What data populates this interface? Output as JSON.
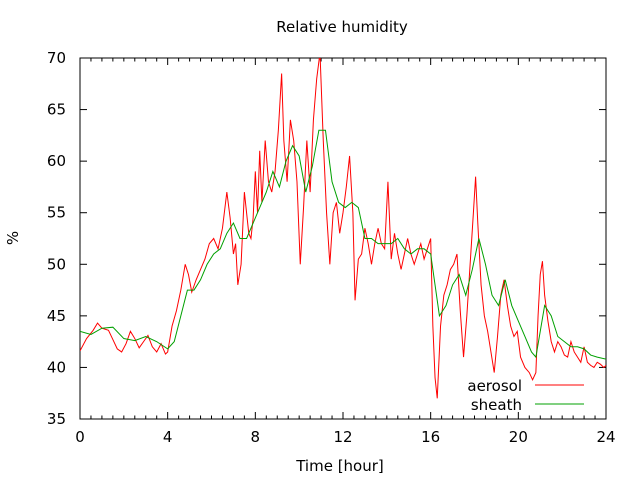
{
  "chart_data": {
    "type": "line",
    "title": "Relative humidity",
    "xlabel": "Time [hour]",
    "ylabel": "%",
    "xlim": [
      0,
      24
    ],
    "ylim": [
      35,
      70
    ],
    "x_ticks": [
      0,
      4,
      8,
      12,
      16,
      20,
      24
    ],
    "y_ticks": [
      35,
      40,
      45,
      50,
      55,
      60,
      65,
      70
    ],
    "grid": false,
    "legend_position": "bottom-right",
    "series": [
      {
        "name": "aerosol",
        "color": "#ff0000",
        "points": [
          [
            0.0,
            41.6
          ],
          [
            0.3,
            42.8
          ],
          [
            0.6,
            43.6
          ],
          [
            0.8,
            44.3
          ],
          [
            1.0,
            43.8
          ],
          [
            1.3,
            43.6
          ],
          [
            1.5,
            42.7
          ],
          [
            1.7,
            41.8
          ],
          [
            1.9,
            41.5
          ],
          [
            2.1,
            42.3
          ],
          [
            2.3,
            43.5
          ],
          [
            2.5,
            42.8
          ],
          [
            2.7,
            41.9
          ],
          [
            2.9,
            42.5
          ],
          [
            3.1,
            43.1
          ],
          [
            3.3,
            42.0
          ],
          [
            3.5,
            41.5
          ],
          [
            3.7,
            42.3
          ],
          [
            3.9,
            41.3
          ],
          [
            4.0,
            41.5
          ],
          [
            4.2,
            44.0
          ],
          [
            4.4,
            45.5
          ],
          [
            4.6,
            47.5
          ],
          [
            4.8,
            50.0
          ],
          [
            4.95,
            49.0
          ],
          [
            5.1,
            47.3
          ],
          [
            5.3,
            48.5
          ],
          [
            5.5,
            49.5
          ],
          [
            5.7,
            50.5
          ],
          [
            5.9,
            52.0
          ],
          [
            6.1,
            52.5
          ],
          [
            6.3,
            51.5
          ],
          [
            6.5,
            53.5
          ],
          [
            6.7,
            57.0
          ],
          [
            6.85,
            54.5
          ],
          [
            7.0,
            51.0
          ],
          [
            7.1,
            52.0
          ],
          [
            7.2,
            48.0
          ],
          [
            7.35,
            50.0
          ],
          [
            7.5,
            57.0
          ],
          [
            7.6,
            55.0
          ],
          [
            7.7,
            53.0
          ],
          [
            7.8,
            52.5
          ],
          [
            7.9,
            54.5
          ],
          [
            8.0,
            59.0
          ],
          [
            8.1,
            55.0
          ],
          [
            8.2,
            61.0
          ],
          [
            8.3,
            56.0
          ],
          [
            8.45,
            62.0
          ],
          [
            8.6,
            58.0
          ],
          [
            8.75,
            57.0
          ],
          [
            8.9,
            59.0
          ],
          [
            9.05,
            63.0
          ],
          [
            9.2,
            68.5
          ],
          [
            9.3,
            62.0
          ],
          [
            9.45,
            58.0
          ],
          [
            9.6,
            64.0
          ],
          [
            9.75,
            62.0
          ],
          [
            9.9,
            58.0
          ],
          [
            10.05,
            50.0
          ],
          [
            10.2,
            55.5
          ],
          [
            10.35,
            62.0
          ],
          [
            10.5,
            57.0
          ],
          [
            10.65,
            64.0
          ],
          [
            10.8,
            68.0
          ],
          [
            10.95,
            70.5
          ],
          [
            11.1,
            62.0
          ],
          [
            11.25,
            55.0
          ],
          [
            11.4,
            50.0
          ],
          [
            11.55,
            55.0
          ],
          [
            11.7,
            56.0
          ],
          [
            11.85,
            53.0
          ],
          [
            12.0,
            55.0
          ],
          [
            12.15,
            57.5
          ],
          [
            12.3,
            60.5
          ],
          [
            12.45,
            55.0
          ],
          [
            12.55,
            46.5
          ],
          [
            12.7,
            50.5
          ],
          [
            12.85,
            51.0
          ],
          [
            13.0,
            53.5
          ],
          [
            13.15,
            52.0
          ],
          [
            13.3,
            50.0
          ],
          [
            13.45,
            52.0
          ],
          [
            13.6,
            53.5
          ],
          [
            13.75,
            52.0
          ],
          [
            13.9,
            51.5
          ],
          [
            14.05,
            58.0
          ],
          [
            14.2,
            50.5
          ],
          [
            14.35,
            53.0
          ],
          [
            14.5,
            51.0
          ],
          [
            14.65,
            49.5
          ],
          [
            14.8,
            51.0
          ],
          [
            14.95,
            52.5
          ],
          [
            15.1,
            51.0
          ],
          [
            15.25,
            50.0
          ],
          [
            15.4,
            51.0
          ],
          [
            15.55,
            52.0
          ],
          [
            15.7,
            50.5
          ],
          [
            15.85,
            51.5
          ],
          [
            16.0,
            52.5
          ],
          [
            16.1,
            44.0
          ],
          [
            16.2,
            39.0
          ],
          [
            16.3,
            37.0
          ],
          [
            16.45,
            44.0
          ],
          [
            16.6,
            47.0
          ],
          [
            16.75,
            48.0
          ],
          [
            16.9,
            49.5
          ],
          [
            17.05,
            50.0
          ],
          [
            17.2,
            51.0
          ],
          [
            17.35,
            45.5
          ],
          [
            17.5,
            41.0
          ],
          [
            17.65,
            45.0
          ],
          [
            17.8,
            50.0
          ],
          [
            17.95,
            55.0
          ],
          [
            18.05,
            58.5
          ],
          [
            18.15,
            54.0
          ],
          [
            18.3,
            48.0
          ],
          [
            18.45,
            45.0
          ],
          [
            18.6,
            43.5
          ],
          [
            18.75,
            41.5
          ],
          [
            18.9,
            39.5
          ],
          [
            19.05,
            43.0
          ],
          [
            19.2,
            47.0
          ],
          [
            19.35,
            48.5
          ],
          [
            19.5,
            46.0
          ],
          [
            19.65,
            44.0
          ],
          [
            19.8,
            43.0
          ],
          [
            19.95,
            43.5
          ],
          [
            20.1,
            41.0
          ],
          [
            20.3,
            40.0
          ],
          [
            20.5,
            39.5
          ],
          [
            20.65,
            38.8
          ],
          [
            20.8,
            39.5
          ],
          [
            20.9,
            45.0
          ],
          [
            21.0,
            49.0
          ],
          [
            21.1,
            50.3
          ],
          [
            21.2,
            47.0
          ],
          [
            21.35,
            44.5
          ],
          [
            21.5,
            42.5
          ],
          [
            21.65,
            41.5
          ],
          [
            21.8,
            42.5
          ],
          [
            21.95,
            42.0
          ],
          [
            22.1,
            41.2
          ],
          [
            22.25,
            41.0
          ],
          [
            22.4,
            42.5
          ],
          [
            22.55,
            41.5
          ],
          [
            22.7,
            41.0
          ],
          [
            22.85,
            40.5
          ],
          [
            23.0,
            42.0
          ],
          [
            23.15,
            40.5
          ],
          [
            23.3,
            40.2
          ],
          [
            23.45,
            40.0
          ],
          [
            23.6,
            40.5
          ],
          [
            23.75,
            40.3
          ],
          [
            23.9,
            40.0
          ],
          [
            24.0,
            40.2
          ]
        ]
      },
      {
        "name": "sheath",
        "color": "#00a000",
        "points": [
          [
            0.0,
            43.5
          ],
          [
            0.5,
            43.2
          ],
          [
            1.0,
            43.8
          ],
          [
            1.5,
            43.9
          ],
          [
            2.0,
            42.8
          ],
          [
            2.5,
            42.6
          ],
          [
            3.0,
            43.0
          ],
          [
            3.5,
            42.5
          ],
          [
            4.0,
            41.8
          ],
          [
            4.3,
            42.5
          ],
          [
            4.6,
            45.0
          ],
          [
            4.9,
            47.5
          ],
          [
            5.2,
            47.5
          ],
          [
            5.5,
            48.5
          ],
          [
            5.8,
            50.0
          ],
          [
            6.1,
            51.0
          ],
          [
            6.4,
            51.5
          ],
          [
            6.7,
            53.0
          ],
          [
            7.0,
            54.0
          ],
          [
            7.3,
            52.5
          ],
          [
            7.6,
            52.5
          ],
          [
            7.9,
            54.0
          ],
          [
            8.2,
            55.5
          ],
          [
            8.5,
            57.0
          ],
          [
            8.8,
            59.0
          ],
          [
            9.1,
            57.5
          ],
          [
            9.4,
            60.0
          ],
          [
            9.7,
            61.5
          ],
          [
            10.0,
            60.5
          ],
          [
            10.3,
            57.0
          ],
          [
            10.6,
            59.5
          ],
          [
            10.9,
            63.0
          ],
          [
            11.2,
            63.0
          ],
          [
            11.5,
            58.0
          ],
          [
            11.8,
            56.0
          ],
          [
            12.1,
            55.5
          ],
          [
            12.4,
            56.0
          ],
          [
            12.7,
            55.5
          ],
          [
            13.0,
            52.5
          ],
          [
            13.3,
            52.5
          ],
          [
            13.6,
            52.0
          ],
          [
            13.9,
            52.0
          ],
          [
            14.2,
            52.0
          ],
          [
            14.5,
            52.5
          ],
          [
            14.8,
            51.5
          ],
          [
            15.1,
            51.0
          ],
          [
            15.4,
            51.5
          ],
          [
            15.7,
            51.5
          ],
          [
            16.0,
            51.0
          ],
          [
            16.2,
            48.0
          ],
          [
            16.4,
            45.0
          ],
          [
            16.7,
            46.0
          ],
          [
            17.0,
            48.0
          ],
          [
            17.3,
            49.0
          ],
          [
            17.6,
            47.0
          ],
          [
            17.9,
            49.5
          ],
          [
            18.2,
            52.5
          ],
          [
            18.5,
            50.0
          ],
          [
            18.8,
            47.0
          ],
          [
            19.1,
            46.0
          ],
          [
            19.4,
            48.5
          ],
          [
            19.7,
            46.0
          ],
          [
            20.0,
            44.5
          ],
          [
            20.3,
            43.0
          ],
          [
            20.6,
            41.5
          ],
          [
            20.8,
            41.0
          ],
          [
            21.0,
            43.5
          ],
          [
            21.2,
            46.0
          ],
          [
            21.5,
            45.0
          ],
          [
            21.8,
            43.0
          ],
          [
            22.1,
            42.5
          ],
          [
            22.4,
            42.0
          ],
          [
            22.7,
            42.0
          ],
          [
            23.0,
            41.8
          ],
          [
            23.3,
            41.2
          ],
          [
            23.6,
            41.0
          ],
          [
            24.0,
            40.8
          ]
        ]
      }
    ]
  }
}
